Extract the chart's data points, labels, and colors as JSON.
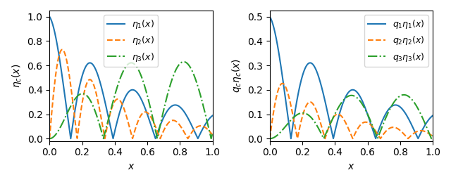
{
  "q1": 0.5,
  "q2": 0.31,
  "q3": 0.285,
  "n_points": 2000,
  "x_min": 0.0,
  "x_max": 1.0,
  "left_ylabel": "$\\eta_c(x)$",
  "right_ylabel": "$q_c\\eta_c(x)$",
  "xlabel": "$x$",
  "left_legend": [
    "$\\eta_1(x)$",
    "$\\eta_2(x)$",
    "$\\eta_3(x)$"
  ],
  "right_legend": [
    "$q_1\\eta_1(x)$",
    "$q_2\\eta_2(x)$",
    "$q_3\\eta_3(x)$"
  ],
  "colors": [
    "#1f77b4",
    "#ff7f0e",
    "#2ca02c"
  ],
  "linestyles": [
    "-",
    "--",
    "-."
  ],
  "figsize": [
    6.4,
    2.59
  ],
  "dpi": 100,
  "omega1": 12.08,
  "omega2": 18.5,
  "omega3": 9.5,
  "decay1": 2.2,
  "decay2": 2.5,
  "decay3_rise": 3.5,
  "decay3_fall": 1.8,
  "floor1": 0.13,
  "floor2": 0.02,
  "amp2": 0.87,
  "amp3_scale": 2.2
}
